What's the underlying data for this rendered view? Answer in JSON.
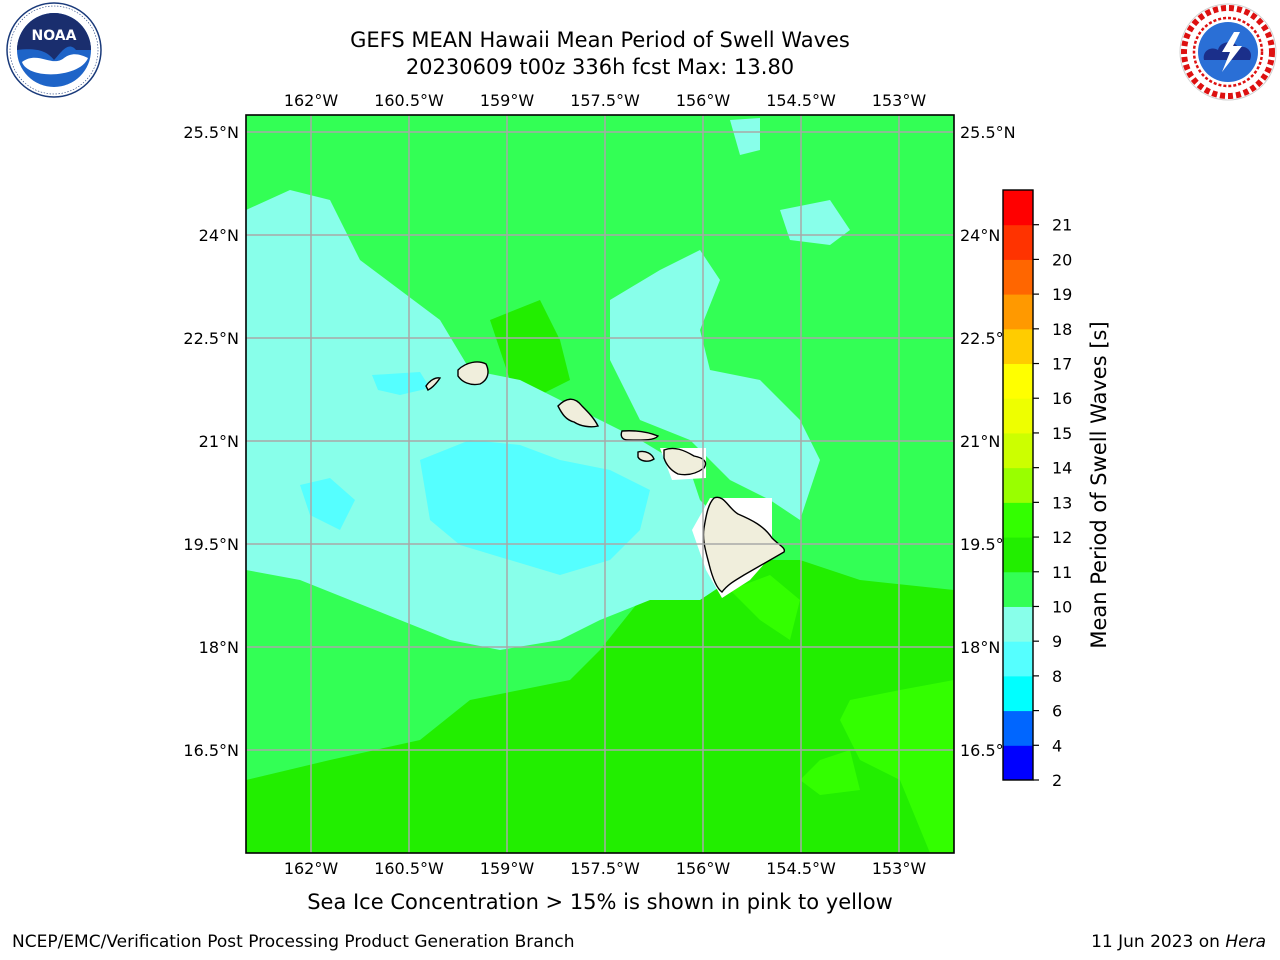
{
  "header": {
    "title_line1": "GEFS MEAN Hawaii Mean Period of Swell Waves",
    "title_line2": "20230609 t00z 336h fcst   Max: 13.80"
  },
  "logos": {
    "left": {
      "icon": "noaa-logo",
      "text": "NOAA",
      "ring_text": "NATIONAL OCEANIC AND ATMOSPHERIC ADMINISTRATION · U.S. DEPARTMENT OF COMMERCE"
    },
    "right": {
      "icon": "nws-logo",
      "ring_text": "NATIONAL WEATHER SERVICE"
    }
  },
  "map": {
    "lon_labels": [
      "162°W",
      "160.5°W",
      "159°W",
      "157.5°W",
      "156°W",
      "154.5°W",
      "153°W"
    ],
    "lat_labels": [
      "25.5°N",
      "24°N",
      "22.5°N",
      "21°N",
      "19.5°N",
      "18°N",
      "16.5°N"
    ],
    "lon_range": [
      -163,
      -152.6
    ],
    "lat_range": [
      15,
      25.75
    ],
    "grid": true
  },
  "colorbar": {
    "label": "Mean Period of Swell Waves [s]",
    "levels": [
      "2",
      "4",
      "6",
      "8",
      "9",
      "10",
      "11",
      "12",
      "13",
      "14",
      "15",
      "16",
      "17",
      "18",
      "19",
      "20",
      "21"
    ],
    "colors": [
      "#0000ff",
      "#0066ff",
      "#00ffff",
      "#55ffff",
      "#88ffea",
      "#33ff55",
      "#22ee00",
      "#33ff00",
      "#99ff00",
      "#ccff00",
      "#eeff00",
      "#ffff00",
      "#ffcc00",
      "#ff9900",
      "#ff6600",
      "#ff3300",
      "#ff0000"
    ]
  },
  "footer": {
    "note": "Sea Ice Concentration > 15% is shown in pink to yellow",
    "left": "NCEP/EMC/Verification Post Processing Product Generation Branch",
    "right_date": "11 Jun 2023 on ",
    "right_host": "Hera"
  }
}
